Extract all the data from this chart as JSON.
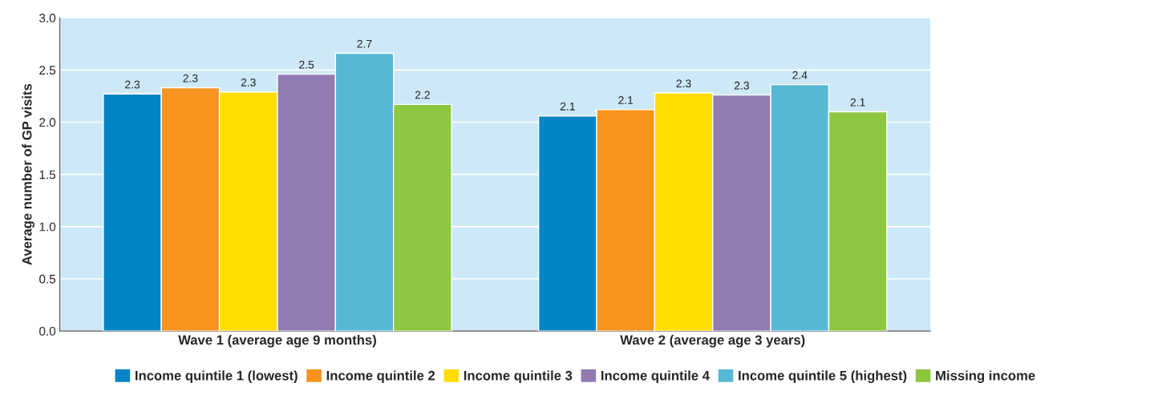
{
  "chart_data": {
    "type": "bar",
    "ylabel": "Average number of GP visits",
    "categories": [
      "Wave 1 (average age 9 months)",
      "Wave 2 (average age 3 years)"
    ],
    "series": [
      {
        "name": "Income quintile 1 (lowest)",
        "color": "#0085c6",
        "values": [
          2.27,
          2.06
        ],
        "value_labels": [
          "2.3",
          "2.1"
        ]
      },
      {
        "name": "Income quintile 2",
        "color": "#f7941d",
        "values": [
          2.33,
          2.12
        ],
        "value_labels": [
          "2.3",
          "2.1"
        ]
      },
      {
        "name": "Income quintile 3",
        "color": "#ffdd00",
        "values": [
          2.29,
          2.28
        ],
        "value_labels": [
          "2.3",
          "2.3"
        ]
      },
      {
        "name": "Income quintile 4",
        "color": "#917ab1",
        "values": [
          2.46,
          2.26
        ],
        "value_labels": [
          "2.5",
          "2.3"
        ]
      },
      {
        "name": "Income quintile 5 (highest)",
        "color": "#56b9d3",
        "values": [
          2.66,
          2.36
        ],
        "value_labels": [
          "2.7",
          "2.4"
        ]
      },
      {
        "name": "Missing income",
        "color": "#8dc63f",
        "values": [
          2.17,
          2.1
        ],
        "value_labels": [
          "2.2",
          "2.1"
        ]
      }
    ],
    "ylim": [
      0,
      3.0
    ],
    "yticks": [
      {
        "value": 0,
        "label": "0.0"
      },
      {
        "value": 0.5,
        "label": "0.5"
      },
      {
        "value": 1.0,
        "label": "1.0"
      },
      {
        "value": 1.5,
        "label": "1.5"
      },
      {
        "value": 2.0,
        "label": "2.0"
      },
      {
        "value": 2.5,
        "label": "2.5"
      },
      {
        "value": 3.0,
        "label": "3.0"
      }
    ],
    "grid": "y",
    "legend": "bottom"
  }
}
